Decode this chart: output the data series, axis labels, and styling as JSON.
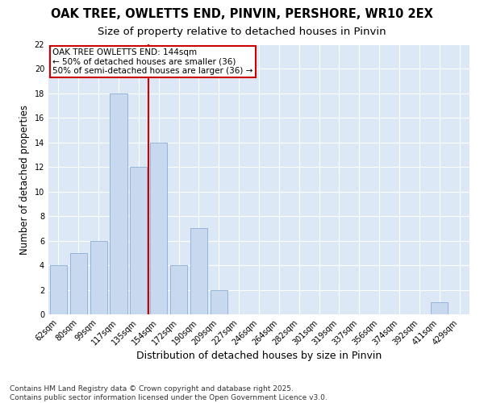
{
  "title": "OAK TREE, OWLETTS END, PINVIN, PERSHORE, WR10 2EX",
  "subtitle": "Size of property relative to detached houses in Pinvin",
  "xlabel": "Distribution of detached houses by size in Pinvin",
  "ylabel": "Number of detached properties",
  "categories": [
    "62sqm",
    "80sqm",
    "99sqm",
    "117sqm",
    "135sqm",
    "154sqm",
    "172sqm",
    "190sqm",
    "209sqm",
    "227sqm",
    "246sqm",
    "264sqm",
    "282sqm",
    "301sqm",
    "319sqm",
    "337sqm",
    "356sqm",
    "374sqm",
    "392sqm",
    "411sqm",
    "429sqm"
  ],
  "values": [
    4,
    5,
    6,
    18,
    12,
    14,
    4,
    7,
    2,
    0,
    0,
    0,
    0,
    0,
    0,
    0,
    0,
    0,
    0,
    1,
    0
  ],
  "bar_color": "#c8d9ef",
  "bar_edge_color": "#8aaed4",
  "vline_x": 4.5,
  "vline_color": "#cc0000",
  "annotation_text": "OAK TREE OWLETTS END: 144sqm\n← 50% of detached houses are smaller (36)\n50% of semi-detached houses are larger (36) →",
  "annotation_box_color": "#ffffff",
  "annotation_box_edge_color": "#cc0000",
  "ylim": [
    0,
    22
  ],
  "yticks": [
    0,
    2,
    4,
    6,
    8,
    10,
    12,
    14,
    16,
    18,
    20,
    22
  ],
  "fig_bg_color": "#ffffff",
  "axes_bg_color": "#dce8f5",
  "footer_text": "Contains HM Land Registry data © Crown copyright and database right 2025.\nContains public sector information licensed under the Open Government Licence v3.0.",
  "title_fontsize": 10.5,
  "subtitle_fontsize": 9.5,
  "xlabel_fontsize": 9,
  "ylabel_fontsize": 8.5,
  "tick_fontsize": 7,
  "annotation_fontsize": 7.5,
  "footer_fontsize": 6.5
}
